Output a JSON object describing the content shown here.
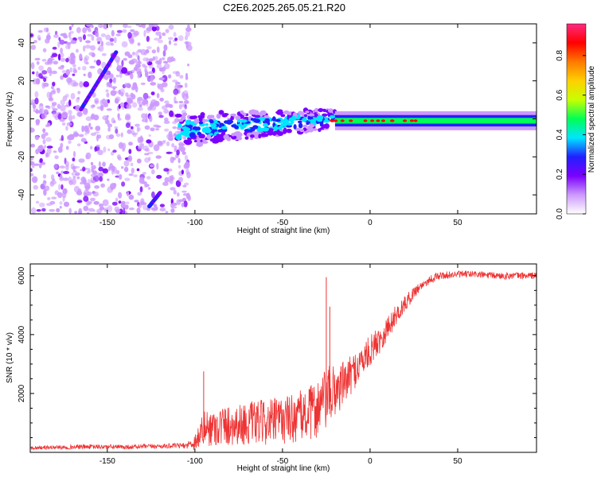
{
  "title": "C2E6.2025.265.05.21.R20",
  "colorbar": {
    "label": "Normalized spectral amplitude",
    "ticks": [
      "0.0",
      "0.2",
      "0.4",
      "0.6",
      "0.8"
    ],
    "tick_values": [
      0.0,
      0.2,
      0.4,
      0.6,
      0.8
    ],
    "range": [
      0,
      0.96
    ],
    "colors": [
      "#ffffff",
      "#cc99ff",
      "#7a00ff",
      "#2020ff",
      "#00e5ff",
      "#00ff55",
      "#c8ff00",
      "#ffd000",
      "#ff7a00",
      "#ff0000",
      "#ff2a80"
    ]
  },
  "chart_data": [
    {
      "type": "heatmap",
      "title": "C2E6.2025.265.05.21.R20",
      "xlabel": "Height of straight line (km)",
      "ylabel": "Frequency (Hz)",
      "xlim": [
        -194,
        95
      ],
      "ylim": [
        -50,
        50
      ],
      "xticks": [
        -150,
        -100,
        -50,
        0,
        50
      ],
      "yticks": [
        -40,
        -20,
        0,
        20,
        40
      ],
      "xtick_labels": [
        "-150",
        "-100",
        "-50",
        "0",
        "50"
      ],
      "ytick_labels": [
        "-40",
        "-20",
        "0",
        "20",
        "40"
      ],
      "features": [
        {
          "name": "noise-region",
          "x_range": [
            -194,
            -103
          ],
          "amplitude": 0.15
        },
        {
          "name": "diagonal-streak",
          "x_range": [
            -165,
            -145
          ],
          "y_range": [
            5,
            35
          ],
          "amplitude": 0.3
        },
        {
          "name": "lower-streak",
          "x_range": [
            -126,
            -120
          ],
          "y_range": [
            -46,
            -39
          ],
          "amplitude": 0.3
        },
        {
          "name": "scatter-band",
          "x_range": [
            -110,
            -20
          ],
          "y_at_start": -6,
          "y_at_end": 0,
          "amplitude": 0.3
        },
        {
          "name": "carrier-line",
          "x_range": [
            -20,
            95
          ],
          "y": -1,
          "amplitude": 0.45
        }
      ]
    },
    {
      "type": "line",
      "title": "",
      "xlabel": "Height of straight line (km)",
      "ylabel": "SNR (10 * v/v)",
      "xlim": [
        -194,
        95
      ],
      "ylim": [
        0,
        6400
      ],
      "xticks": [
        -150,
        -100,
        -50,
        0,
        50
      ],
      "yticks": [
        2000,
        4000,
        6000
      ],
      "xtick_labels": [
        "-150",
        "-100",
        "-50",
        "0",
        "50"
      ],
      "ytick_labels": [
        "2000",
        "4000",
        "6000"
      ],
      "series": [
        {
          "name": "SNR",
          "color": "#ee3333",
          "x": [
            -194,
            -180,
            -160,
            -140,
            -120,
            -105,
            -100,
            -95,
            -85,
            -75,
            -65,
            -55,
            -45,
            -35,
            -28,
            -22,
            -18,
            -14,
            -10,
            -6,
            -2,
            2,
            6,
            10,
            14,
            18,
            22,
            26,
            30,
            35,
            40,
            50,
            60,
            70,
            80,
            95
          ],
          "values": [
            150,
            170,
            190,
            180,
            210,
            230,
            350,
            800,
            900,
            950,
            1000,
            1050,
            1150,
            1300,
            1600,
            2000,
            2200,
            2400,
            2700,
            3000,
            3300,
            3600,
            3900,
            4200,
            4600,
            4900,
            5200,
            5500,
            5700,
            5900,
            6000,
            6050,
            6050,
            6000,
            6000,
            6000
          ],
          "noise": [
            60,
            70,
            80,
            80,
            80,
            90,
            300,
            600,
            700,
            700,
            750,
            800,
            850,
            900,
            1100,
            1000,
            900,
            700,
            650,
            600,
            550,
            500,
            500,
            450,
            350,
            300,
            250,
            200,
            150,
            150,
            130,
            120,
            120,
            120,
            120,
            120
          ],
          "spikes": [
            {
              "x": -25,
              "value": 5950
            },
            {
              "x": -23,
              "value": 4950
            },
            {
              "x": -95,
              "value": 2750
            },
            {
              "x": 10,
              "value": 4550
            }
          ]
        }
      ]
    }
  ]
}
